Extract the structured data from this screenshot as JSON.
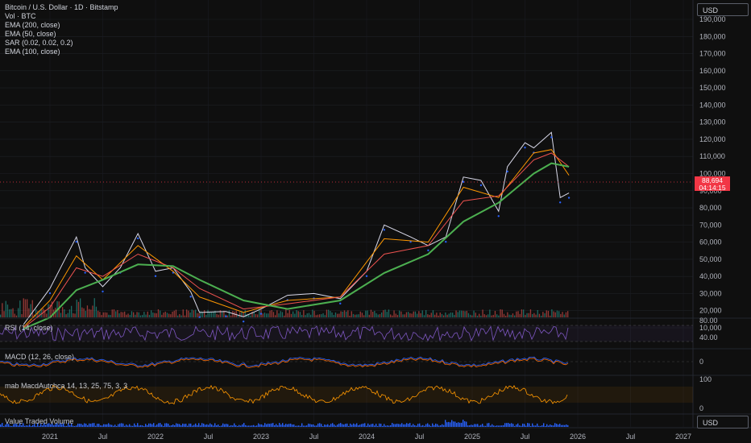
{
  "legend": {
    "title": "Bitcoin / U.S. Dollar · 1D · Bitstamp",
    "lines": [
      "Vol · BTC",
      "EMA (200, close)",
      "EMA (50, close)",
      "SAR (0.02, 0.02, 0.2)",
      "EMA (100, close)"
    ]
  },
  "currency_top": "USD",
  "currency_bottom": "USD",
  "last_price": {
    "value": "88,694",
    "countdown": "04:14:15"
  },
  "panes": {
    "rsi": "RSI (14, close)",
    "macd": "MACD (12, 26, close)",
    "mab": "mab MacdAutchca 14, 13, 25, 75, 3, 3",
    "vtv": "Value Traded Volume"
  },
  "colors": {
    "background": "#0f0f0f",
    "price_tag": "#f23645",
    "ema200": "#4caf50",
    "rsi": "#7e57c2",
    "vtv": "#2962ff"
  },
  "chart_data": {
    "type": "line",
    "title": "Bitcoin / U.S. Dollar · 1D · Bitstamp",
    "y_ticks": [
      10000,
      20000,
      30000,
      40000,
      50000,
      60000,
      70000,
      80000,
      90000,
      100000,
      110000,
      120000,
      130000,
      140000,
      150000,
      160000,
      170000,
      180000,
      190000
    ],
    "y_tick_labels": [
      "10,000",
      "20,000",
      "30,000",
      "40,000",
      "50,000",
      "60,000",
      "70,000",
      "80,000",
      "90,000",
      "100,000",
      "110,000",
      "120,000",
      "130,000",
      "140,000",
      "150,000",
      "160,000",
      "170,000",
      "180,000",
      "190,000"
    ],
    "x_ticks": [
      "2021",
      "Jul",
      "2022",
      "Jul",
      "2023",
      "Jul",
      "2024",
      "Jul",
      "2025",
      "Jul",
      "2026",
      "Jul",
      "2027"
    ],
    "ylim": [
      0,
      195000
    ],
    "last_close": 88694,
    "series": [
      {
        "name": "BTC/USD",
        "x": [
          "2020-10",
          "2021-01",
          "2021-04",
          "2021-05",
          "2021-07",
          "2021-09",
          "2021-11",
          "2022-01",
          "2022-03",
          "2022-05",
          "2022-06",
          "2022-09",
          "2022-11",
          "2023-01",
          "2023-04",
          "2023-07",
          "2023-10",
          "2024-01",
          "2024-03",
          "2024-06",
          "2024-08",
          "2024-10",
          "2024-12",
          "2025-02",
          "2025-04",
          "2025-05",
          "2025-07",
          "2025-08",
          "2025-10",
          "2025-11",
          "2025-12"
        ],
        "values": [
          12000,
          33000,
          63000,
          45000,
          34000,
          45000,
          65000,
          43000,
          45000,
          31000,
          19000,
          19500,
          16500,
          21000,
          29000,
          30000,
          27000,
          43000,
          70000,
          63000,
          58000,
          63000,
          98000,
          96000,
          78000,
          104000,
          118000,
          115000,
          124000,
          86000,
          88694
        ]
      },
      {
        "name": "EMA (50, close)",
        "x": [
          "2020-10",
          "2021-01",
          "2021-04",
          "2021-07",
          "2021-11",
          "2022-03",
          "2022-06",
          "2022-11",
          "2023-04",
          "2023-10",
          "2024-03",
          "2024-08",
          "2024-12",
          "2025-04",
          "2025-08",
          "2025-10",
          "2025-12"
        ],
        "values": [
          10500,
          26000,
          52000,
          38000,
          58000,
          43000,
          28000,
          19000,
          26000,
          28000,
          62000,
          60000,
          92000,
          86000,
          112000,
          114000,
          99000
        ]
      },
      {
        "name": "EMA (100, close)",
        "x": [
          "2020-10",
          "2021-01",
          "2021-04",
          "2021-07",
          "2021-11",
          "2022-03",
          "2022-06",
          "2022-11",
          "2023-04",
          "2023-10",
          "2024-03",
          "2024-08",
          "2024-12",
          "2025-04",
          "2025-08",
          "2025-10",
          "2025-12"
        ],
        "values": [
          10000,
          22000,
          45000,
          40000,
          53000,
          45000,
          33000,
          21000,
          24000,
          28000,
          53000,
          58000,
          84000,
          87000,
          108000,
          112000,
          104000
        ]
      },
      {
        "name": "EMA (200, close)",
        "x": [
          "2020-10",
          "2021-01",
          "2021-04",
          "2021-07",
          "2021-11",
          "2022-03",
          "2022-06",
          "2022-11",
          "2023-04",
          "2023-10",
          "2024-03",
          "2024-08",
          "2024-12",
          "2025-04",
          "2025-08",
          "2025-10",
          "2025-12"
        ],
        "values": [
          9500,
          16000,
          32000,
          38000,
          47000,
          46000,
          38000,
          26000,
          21000,
          26000,
          42000,
          53000,
          72000,
          83000,
          100000,
          106000,
          104000
        ]
      }
    ]
  }
}
